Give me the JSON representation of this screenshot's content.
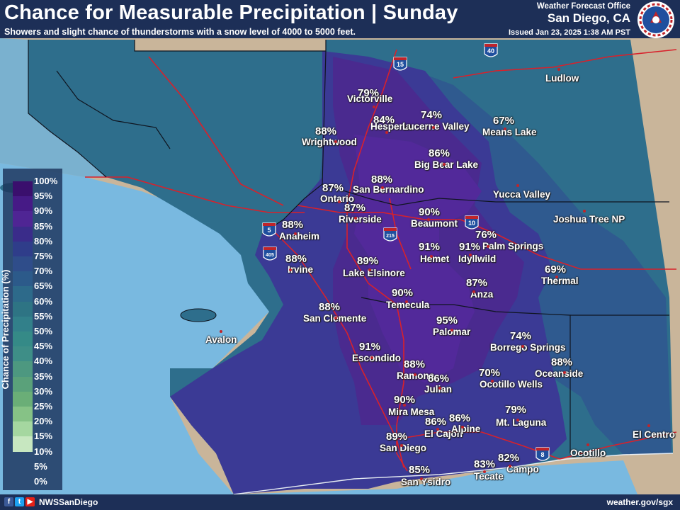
{
  "header": {
    "title": "Chance for Measurable Precipitation | Sunday",
    "subtitle": "Showers and slight chance of thunderstorms with a snow level of 4000 to 5000 feet.",
    "office_line1": "Weather Forecast Office",
    "office_line2": "San Diego, CA",
    "issued": "Issued Jan 23, 2025 1:38 AM PST",
    "logo": "nws-logo"
  },
  "footer": {
    "handle": "NWSSanDiego",
    "website": "weather.gov/sgx",
    "icons": [
      "facebook-icon",
      "twitter-icon",
      "youtube-icon"
    ]
  },
  "legend": {
    "title": "Chance of Precipitation (%)",
    "ticks": [
      "100%",
      "95%",
      "90%",
      "85%",
      "80%",
      "75%",
      "70%",
      "65%",
      "60%",
      "55%",
      "50%",
      "45%",
      "40%",
      "35%",
      "30%",
      "25%",
      "20%",
      "15%",
      "10%",
      "5%",
      "0%"
    ],
    "colors": [
      "#3a0f6d",
      "#461a86",
      "#4f2594",
      "#3a2c8a",
      "#2f3d8a",
      "#2f4d8a",
      "#2c5a8a",
      "#2d6a8a",
      "#2e7484",
      "#32808a",
      "#358a87",
      "#3e8e87",
      "#4d9880",
      "#5aa17a",
      "#6aae77",
      "#86c286",
      "#a5d7a0",
      "#c7e7c0"
    ]
  },
  "map": {
    "highway_shields": [
      {
        "name": "interstate-40-shield",
        "number": "40"
      },
      {
        "name": "interstate-15-shield",
        "number": "15"
      },
      {
        "name": "interstate-10-shield",
        "number": "10"
      },
      {
        "name": "interstate-215-shield",
        "number": "215"
      },
      {
        "name": "interstate-5-shield",
        "number": "5"
      },
      {
        "name": "interstate-405-shield",
        "number": "405"
      },
      {
        "name": "interstate-8-shield",
        "number": "8"
      }
    ],
    "locations": [
      {
        "name": "Victorville",
        "pop": "79%"
      },
      {
        "name": "Hesperia",
        "pop": "84%"
      },
      {
        "name": "Lucerne Valley",
        "pop": "74%"
      },
      {
        "name": "Means Lake",
        "pop": "67%"
      },
      {
        "name": "Wrightwood",
        "pop": "88%"
      },
      {
        "name": "Big Bear Lake",
        "pop": "86%"
      },
      {
        "name": "San Bernardino",
        "pop": "88%"
      },
      {
        "name": "Ontario",
        "pop": "87%"
      },
      {
        "name": "Riverside",
        "pop": "87%"
      },
      {
        "name": "Beaumont",
        "pop": "90%"
      },
      {
        "name": "Palm Springs",
        "pop": "76%"
      },
      {
        "name": "Anaheim",
        "pop": "88%"
      },
      {
        "name": "Irvine",
        "pop": "88%"
      },
      {
        "name": "Hemet",
        "pop": "91%"
      },
      {
        "name": "Idyllwild",
        "pop": "91%"
      },
      {
        "name": "Lake Elsinore",
        "pop": "89%"
      },
      {
        "name": "Thermal",
        "pop": "69%"
      },
      {
        "name": "Anza",
        "pop": "87%"
      },
      {
        "name": "Temecula",
        "pop": "90%"
      },
      {
        "name": "San Clemente",
        "pop": "88%"
      },
      {
        "name": "Palomar",
        "pop": "95%"
      },
      {
        "name": "Borrego Springs",
        "pop": "74%"
      },
      {
        "name": "Oceanside",
        "pop": "88%"
      },
      {
        "name": "Escondido",
        "pop": "91%"
      },
      {
        "name": "Ramona",
        "pop": "88%"
      },
      {
        "name": "Julian",
        "pop": "86%"
      },
      {
        "name": "Ocotillo Wells",
        "pop": "70%"
      },
      {
        "name": "Mira Mesa",
        "pop": "90%"
      },
      {
        "name": "El Cajon",
        "pop": "86%"
      },
      {
        "name": "Alpine",
        "pop": "86%"
      },
      {
        "name": "Mt. Laguna",
        "pop": "79%"
      },
      {
        "name": "San Diego",
        "pop": "89%"
      },
      {
        "name": "Campo",
        "pop": "82%"
      },
      {
        "name": "Tecate",
        "pop": "83%"
      },
      {
        "name": "San Ysidro",
        "pop": "85%"
      }
    ],
    "other_places": [
      "Ludlow",
      "Yucca Valley",
      "Joshua Tree NP",
      "Avalon",
      "El Centro",
      "Ocotillo"
    ]
  }
}
